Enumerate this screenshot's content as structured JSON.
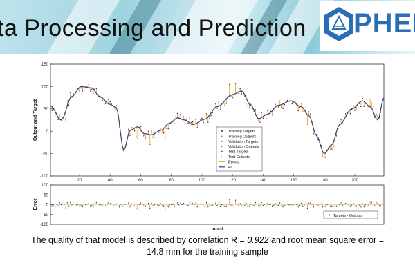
{
  "header": {
    "title": "ta Processing and Prediction",
    "logo_text": "PHED"
  },
  "caption": {
    "line1_pre": "The quality of that model is described by correlation R = ",
    "r_value": "0.922",
    "line1_post": " and root mean square error =",
    "line2": "14.8 mm for the training sample"
  },
  "colors": {
    "fit": "#3b3b6e",
    "targets": "#333333",
    "errors": "#f0a830",
    "training": "#2b2bdd",
    "validation": "#1ca01c",
    "test": "#dd2b2b"
  },
  "chart_data": [
    {
      "type": "line",
      "ylabel": "Output and Target",
      "xlim": [
        1,
        219
      ],
      "ylim": [
        -100,
        150
      ],
      "xticks": [
        20,
        40,
        60,
        80,
        100,
        120,
        140,
        160,
        180,
        200
      ],
      "yticks": [
        -100,
        -50,
        0,
        50,
        100,
        150
      ],
      "grid": false,
      "legend_position": "bottom-center",
      "legend": [
        "Training Targets",
        "Training Outputs",
        "Validation Targets",
        "Validation Outputs",
        "Test Targets",
        "Test Outputs",
        "Errors",
        "Fit"
      ],
      "fit_keypoints": [
        [
          1,
          57
        ],
        [
          8,
          25
        ],
        [
          15,
          78
        ],
        [
          21,
          100
        ],
        [
          28,
          97
        ],
        [
          33,
          78
        ],
        [
          40,
          60
        ],
        [
          44,
          53
        ],
        [
          49,
          -43
        ],
        [
          53,
          2
        ],
        [
          58,
          10
        ],
        [
          62,
          -5
        ],
        [
          67,
          -8
        ],
        [
          73,
          2
        ],
        [
          79,
          18
        ],
        [
          84,
          30
        ],
        [
          89,
          25
        ],
        [
          94,
          15
        ],
        [
          102,
          27
        ],
        [
          110,
          55
        ],
        [
          120,
          82
        ],
        [
          126,
          90
        ],
        [
          132,
          58
        ],
        [
          137,
          28
        ],
        [
          143,
          38
        ],
        [
          150,
          58
        ],
        [
          158,
          68
        ],
        [
          165,
          55
        ],
        [
          170,
          35
        ],
        [
          175,
          -10
        ],
        [
          180,
          -50
        ],
        [
          185,
          -30
        ],
        [
          190,
          15
        ],
        [
          198,
          50
        ],
        [
          205,
          68
        ],
        [
          210,
          55
        ],
        [
          215,
          25
        ],
        [
          219,
          75
        ]
      ]
    },
    {
      "type": "bar",
      "xlabel": "Input",
      "ylabel": "Error",
      "xlim": [
        1,
        219
      ],
      "ylim": [
        -100,
        100
      ],
      "yticks": [
        -100,
        -50,
        0,
        50,
        100
      ],
      "legend": [
        "Targets - Outputs"
      ],
      "legend_position": "bottom-right"
    }
  ]
}
